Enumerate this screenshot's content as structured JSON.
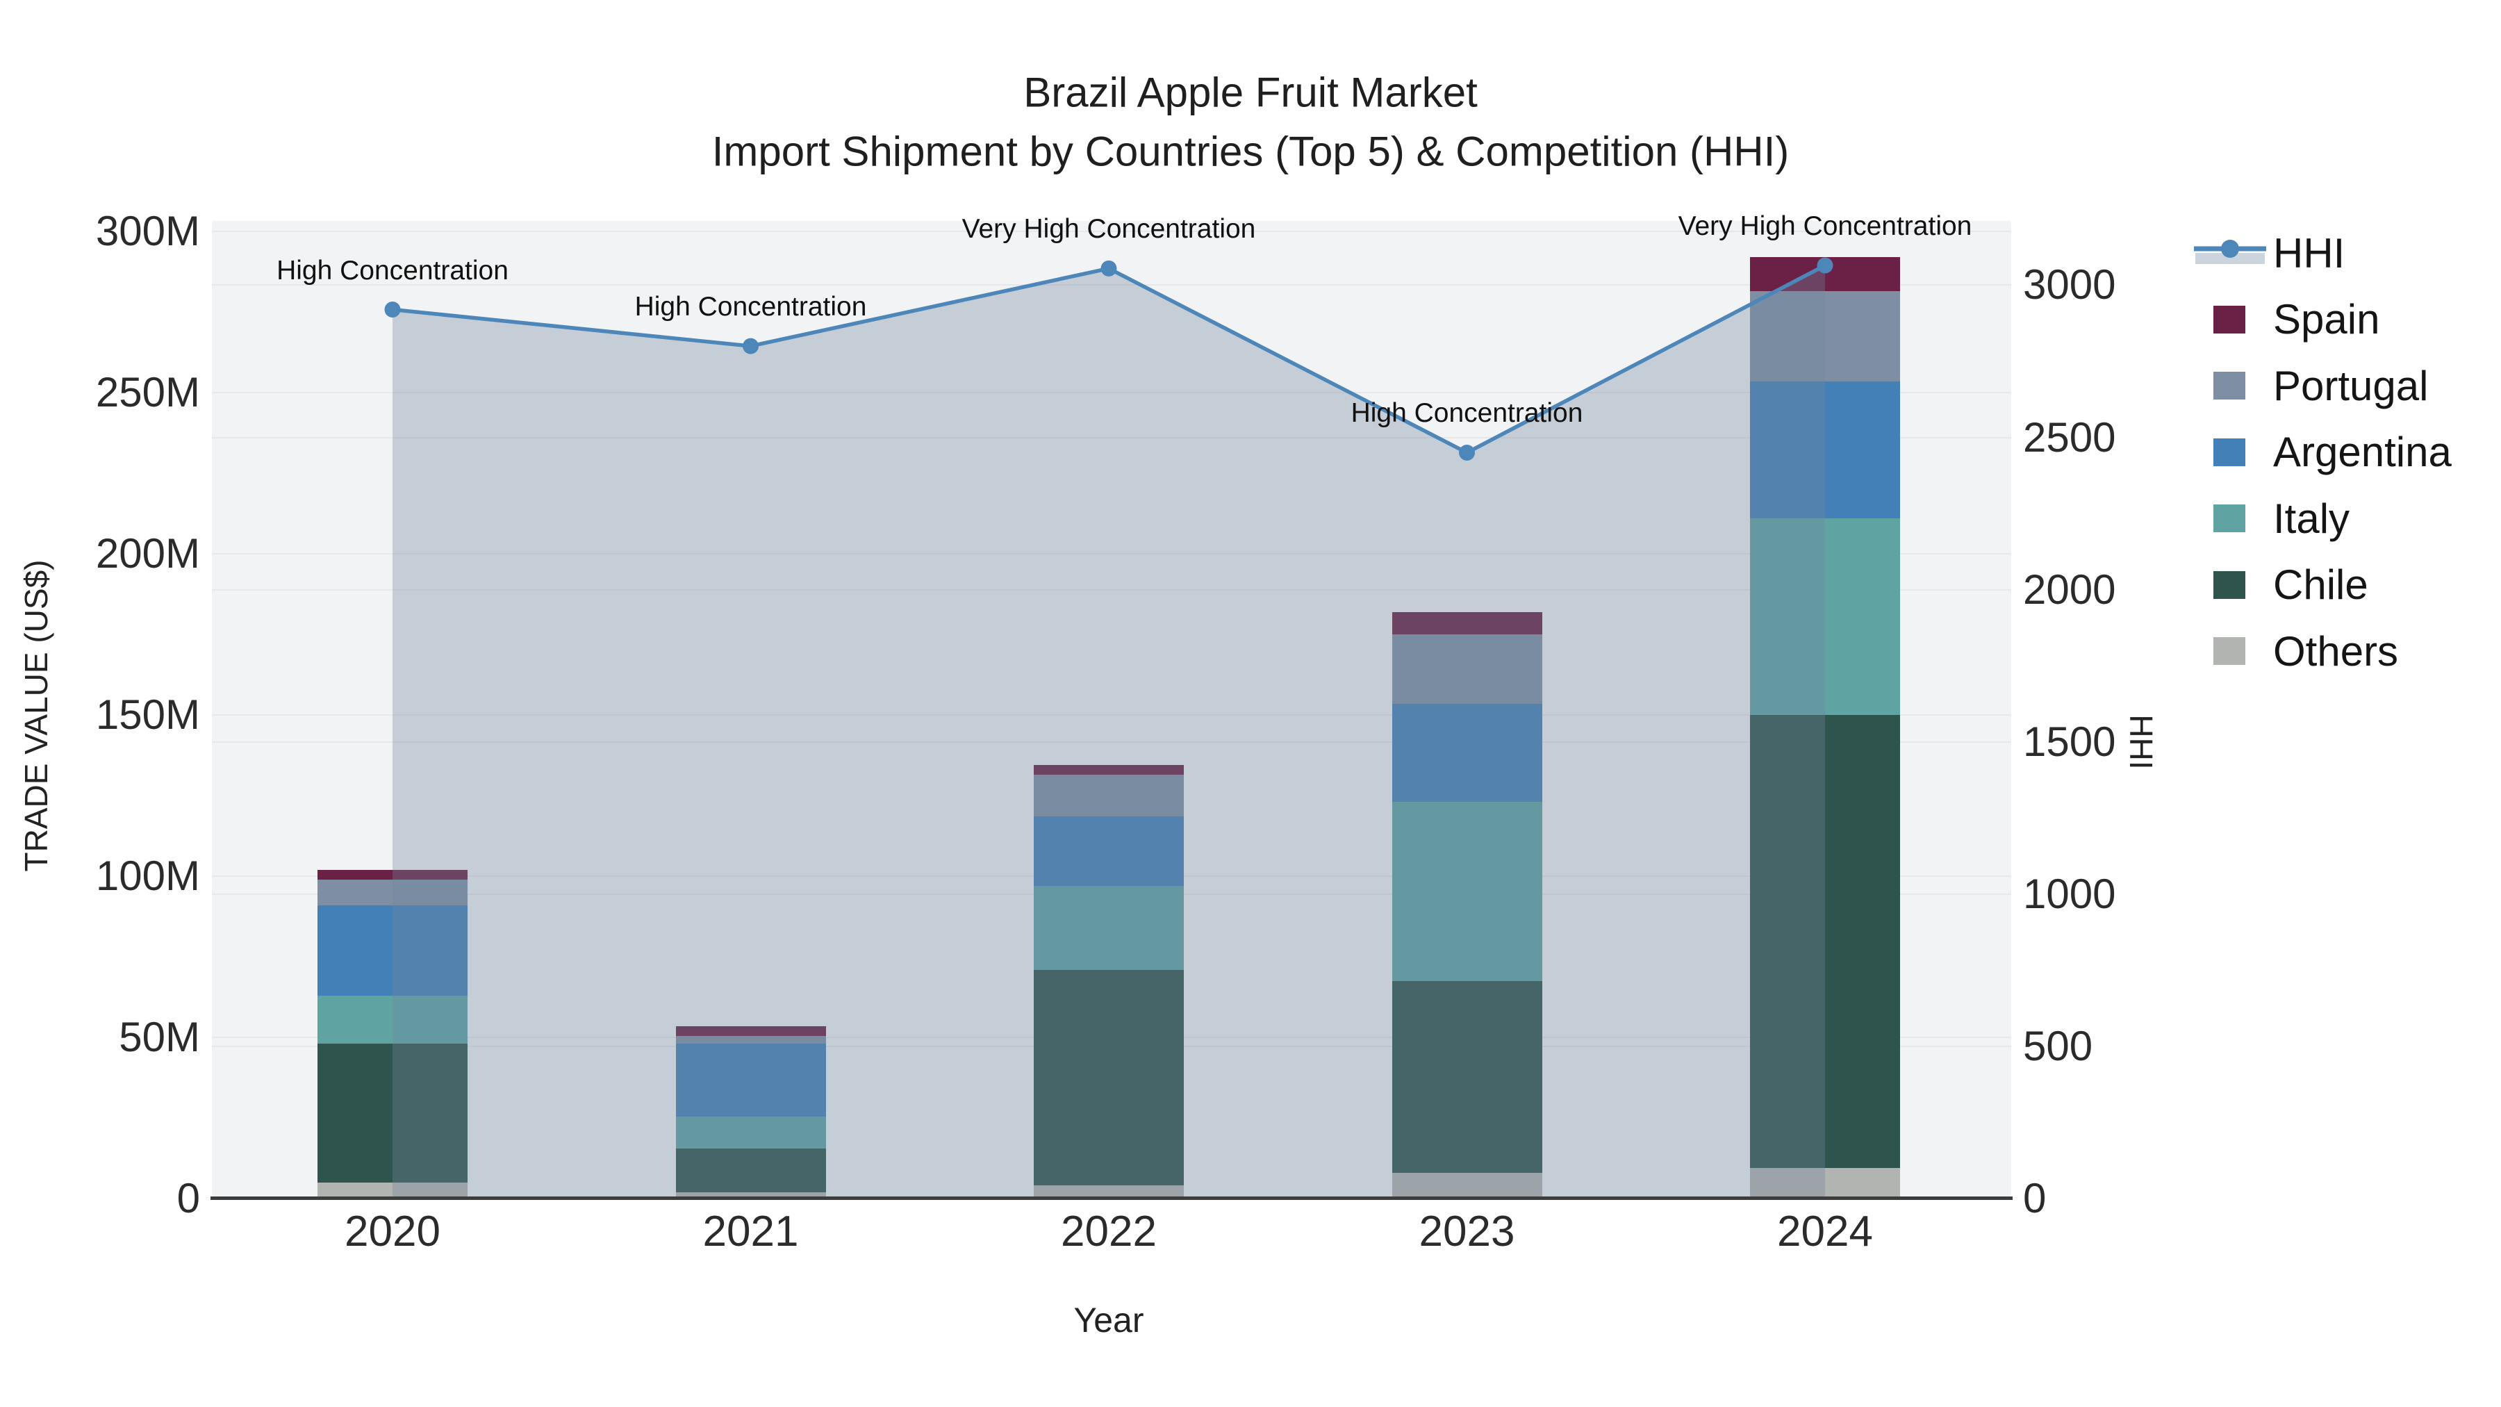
{
  "header": {
    "title_line1": "Brazil Apple Fruit Market",
    "title_line2": "Import Shipment by Countries (Top 5) & Competition (HHI)"
  },
  "chart_data": {
    "type": [
      "stacked-bar",
      "line"
    ],
    "title": "Brazil Apple Fruit Market — Import Shipment by Countries (Top 5) & Competition (HHI)",
    "categories": [
      "2020",
      "2021",
      "2022",
      "2023",
      "2024"
    ],
    "value_unit": "M US$ (millions)",
    "series": [
      {
        "name": "Others",
        "color": "#b2b4b1",
        "values": [
          5,
          2,
          4,
          8,
          9.5
        ]
      },
      {
        "name": "Chile",
        "color": "#2f544d",
        "values": [
          43,
          13.5,
          67,
          59.5,
          140.5
        ]
      },
      {
        "name": "Italy",
        "color": "#5fa3a3",
        "values": [
          15,
          10,
          26,
          55.5,
          61
        ]
      },
      {
        "name": "Argentina",
        "color": "#4480b8",
        "values": [
          28,
          22.5,
          21.5,
          30.5,
          42.5
        ]
      },
      {
        "name": "Portugal",
        "color": "#7e8fa3",
        "values": [
          8,
          2.5,
          13,
          21.5,
          28
        ]
      },
      {
        "name": "Spain",
        "color": "#6b2046",
        "values": [
          3,
          3,
          3,
          7,
          10.5
        ]
      }
    ],
    "bar_totals": [
      102,
      53.5,
      134.5,
      182.5,
      292
    ],
    "hhi": {
      "name": "HHI",
      "color": "#4d86b8",
      "area_color": "rgba(116,134,158,0.35)",
      "values": [
        2920,
        2800,
        3055,
        2450,
        3065
      ]
    },
    "annotations": [
      "High Concentration",
      "High Concentration",
      "Very High Concentration",
      "High Concentration",
      "Very High Concentration"
    ],
    "x_axis": {
      "title": "Year"
    },
    "y_left": {
      "title": "TRADE VALUE (US$)",
      "tick_labels": [
        "0",
        "50M",
        "100M",
        "150M",
        "200M",
        "250M",
        "300M"
      ],
      "tick_values": [
        0,
        50,
        100,
        150,
        200,
        250,
        300
      ],
      "range": [
        0,
        303.2
      ]
    },
    "y_right": {
      "title": "HHI",
      "tick_labels": [
        "0",
        "500",
        "1000",
        "1500",
        "2000",
        "2500",
        "3000"
      ],
      "tick_values": [
        0,
        500,
        1000,
        1500,
        2000,
        2500,
        3000
      ],
      "range": [
        0,
        3211
      ]
    },
    "legend": {
      "position": "right",
      "items": [
        "HHI",
        "Spain",
        "Portugal",
        "Argentina",
        "Italy",
        "Chile",
        "Others"
      ],
      "hhi_band_color": "#ccd5dd"
    },
    "grid": true,
    "plot_bg": "#f2f3f4",
    "grid_color": "#e6e7ea",
    "axis_line_color": "#3d3d3d"
  }
}
